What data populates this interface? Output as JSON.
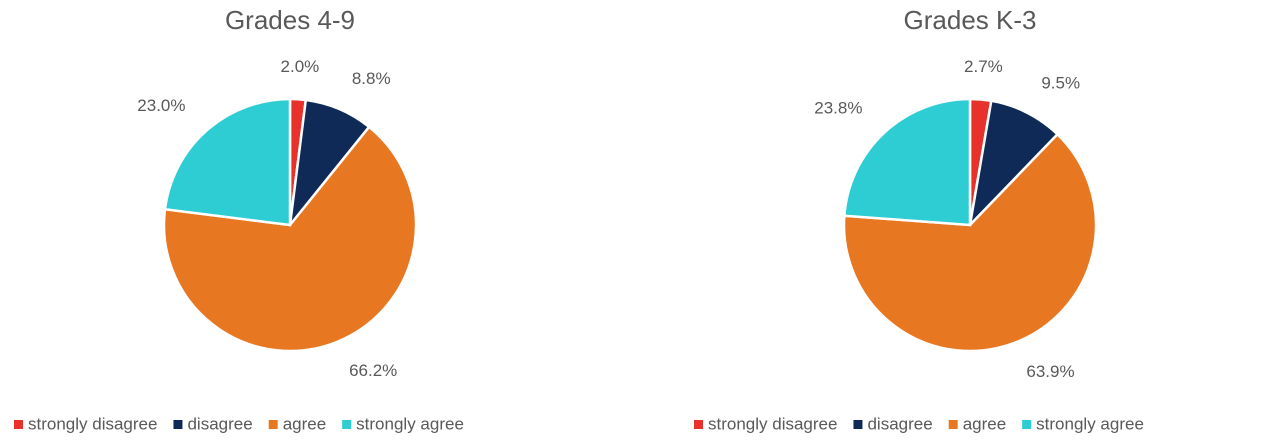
{
  "chart_data": [
    {
      "type": "pie",
      "title": "Grades 4-9",
      "categories": [
        "strongly disagree",
        "disagree",
        "agree",
        "strongly agree"
      ],
      "values": [
        2.0,
        8.8,
        66.2,
        23.0
      ],
      "value_labels": [
        "2.0%",
        "8.8%",
        "66.2%",
        "23.0%"
      ],
      "colors": [
        "#e8312a",
        "#0f2a57",
        "#e87722",
        "#2ecdd4"
      ],
      "legend": "bottom"
    },
    {
      "type": "pie",
      "title": "Grades K-3",
      "categories": [
        "strongly disagree",
        "disagree",
        "agree",
        "strongly agree"
      ],
      "values": [
        2.7,
        9.5,
        63.9,
        23.8
      ],
      "value_labels": [
        "2.7%",
        "9.5%",
        "63.9%",
        "23.8%"
      ],
      "colors": [
        "#e8312a",
        "#0f2a57",
        "#e87722",
        "#2ecdd4"
      ],
      "legend": "bottom"
    }
  ]
}
